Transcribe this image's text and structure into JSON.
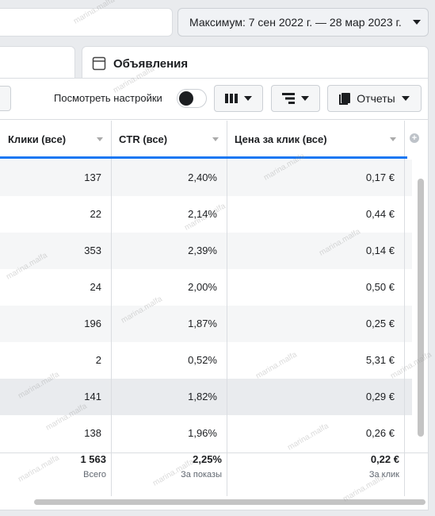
{
  "top_bar": {
    "date_range": "Максимум: 7 сен 2022 г. — 28 мар 2023 г."
  },
  "tab": {
    "label": "Объявления"
  },
  "toolbar": {
    "view_settings": "Посмотреть настройки",
    "reports": "Отчеты"
  },
  "table": {
    "headers": [
      "Клики (все)",
      "CTR (все)",
      "Цена за клик (все)"
    ],
    "rows": [
      [
        "137",
        "2,40%",
        "0,17 €"
      ],
      [
        "22",
        "2,14%",
        "0,44 €"
      ],
      [
        "353",
        "2,39%",
        "0,14 €"
      ],
      [
        "24",
        "2,00%",
        "0,50 €"
      ],
      [
        "196",
        "1,87%",
        "0,25 €"
      ],
      [
        "2",
        "0,52%",
        "5,31 €"
      ],
      [
        "141",
        "1,82%",
        "0,29 €"
      ],
      [
        "138",
        "1,96%",
        "0,26 €"
      ]
    ],
    "totals": [
      {
        "value": "1 563",
        "label": "Всего"
      },
      {
        "value": "2,25%",
        "label": "За показы"
      },
      {
        "value": "0,22 €",
        "label": "За клик"
      }
    ]
  },
  "watermark": "marina.malfa"
}
